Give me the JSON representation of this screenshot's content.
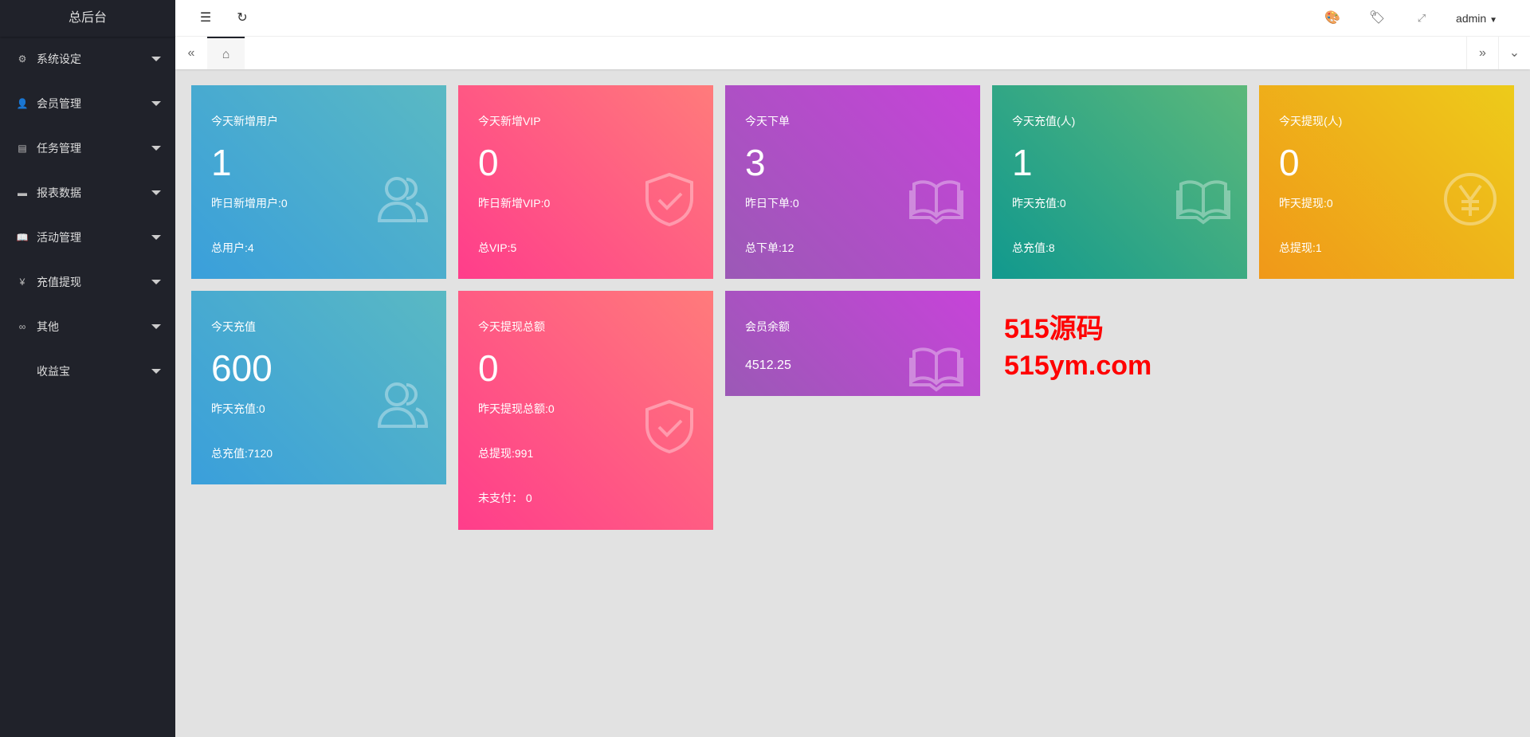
{
  "sidebar": {
    "title": "总后台",
    "items": [
      {
        "label": "系统设定",
        "icon": "gear-icon"
      },
      {
        "label": "会员管理",
        "icon": "user-icon"
      },
      {
        "label": "任务管理",
        "icon": "document-icon"
      },
      {
        "label": "报表数据",
        "icon": "chart-board-icon"
      },
      {
        "label": "活动管理",
        "icon": "book-icon"
      },
      {
        "label": "充值提现",
        "icon": "yen-icon"
      },
      {
        "label": "其他",
        "icon": "infinity-icon"
      },
      {
        "label": "收益宝",
        "icon": ""
      }
    ]
  },
  "header": {
    "user": "admin"
  },
  "cards": [
    {
      "title": "今天新增用户",
      "value": "1",
      "line1": "昨日新增用户:0",
      "line2": "总用户:4",
      "icon": "users-icon",
      "colors": [
        "#3a9fdb",
        "#5ab9c3"
      ]
    },
    {
      "title": "今天新增VIP",
      "value": "0",
      "line1": "昨日新增VIP:0",
      "line2": "总VIP:5",
      "icon": "shield-check-icon",
      "colors": [
        "#ff3d8b",
        "#ff7b7b"
      ]
    },
    {
      "title": "今天下单",
      "value": "3",
      "line1": "昨日下单:0",
      "line2": "总下单:12",
      "icon": "book-icon",
      "colors": [
        "#9b59b6",
        "#c743d9"
      ]
    },
    {
      "title": "今天充值(人)",
      "value": "1",
      "line1": "昨天充值:0",
      "line2": "总充值:8",
      "icon": "book-icon",
      "colors": [
        "#11998e",
        "#5cb87a"
      ]
    },
    {
      "title": "今天提现(人)",
      "value": "0",
      "line1": "昨天提现:0",
      "line2": "总提现:1",
      "icon": "yen-icon",
      "colors": [
        "#f09819",
        "#edcb1a"
      ]
    },
    {
      "title": "今天充值",
      "value": "600",
      "line1": "昨天充值:0",
      "line2": "总充值:7120",
      "icon": "users-icon",
      "colors": [
        "#3a9fdb",
        "#5ab9c3"
      ]
    },
    {
      "title": "今天提现总额",
      "value": "0",
      "line1": "昨天提现总额:0",
      "line2": "总提现:991",
      "line3": "未支付： 0",
      "icon": "shield-check-icon",
      "colors": [
        "#ff3d8b",
        "#ff7b7b"
      ]
    },
    {
      "title": "会员余额",
      "value": "4512.25",
      "icon": "book-icon",
      "colors": [
        "#9b59b6",
        "#c743d9"
      ]
    }
  ],
  "watermark": {
    "line1": "515源码",
    "line2": "515ym.com"
  }
}
